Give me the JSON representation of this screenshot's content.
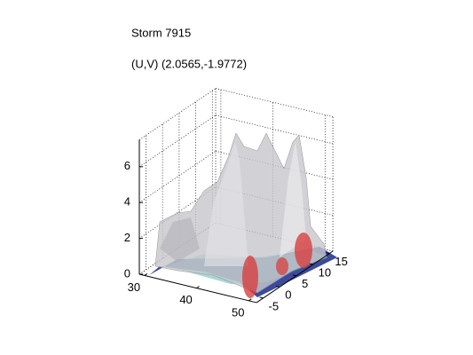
{
  "chart_data": {
    "type": "isosurface3d",
    "title": "Storm 7915",
    "subtitle": "(U,V) (2.0565,-1.9772)",
    "xlim": [
      29,
      51.5
    ],
    "xticks": [
      30,
      40,
      50
    ],
    "ylim": [
      -7,
      16
    ],
    "yticks": [
      -5,
      0,
      5,
      10,
      15
    ],
    "zlim": [
      0,
      7.5
    ],
    "zticks": [
      0,
      2,
      4,
      6
    ],
    "grid": true
  }
}
